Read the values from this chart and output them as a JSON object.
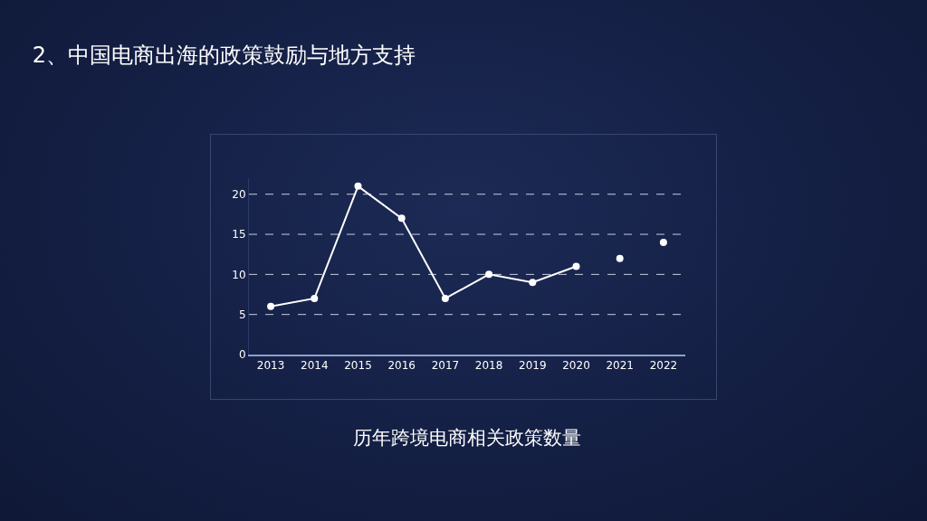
{
  "chart_data": {
    "type": "line",
    "title": "2、中国电商出海的政策鼓励与地方支持",
    "categories": [
      "2013",
      "2014",
      "2015",
      "2016",
      "2017",
      "2018",
      "2019",
      "2020",
      "2021",
      "2022"
    ],
    "series": [
      {
        "color": "#ffffff",
        "values": [
          6,
          7,
          21,
          17,
          7,
          10,
          9,
          11,
          null,
          null
        ]
      },
      {
        "type": "scatter",
        "color": "#ffffff",
        "values": [
          null,
          null,
          null,
          null,
          null,
          null,
          null,
          null,
          12,
          14
        ]
      }
    ],
    "ylim": [
      0,
      22
    ],
    "yticks": [
      0,
      5,
      10,
      15,
      20
    ],
    "grid": "y",
    "marker": "circle",
    "line_style": "solid",
    "legend": false,
    "annotations": [
      "历年跨境电商相关政策数量"
    ]
  }
}
